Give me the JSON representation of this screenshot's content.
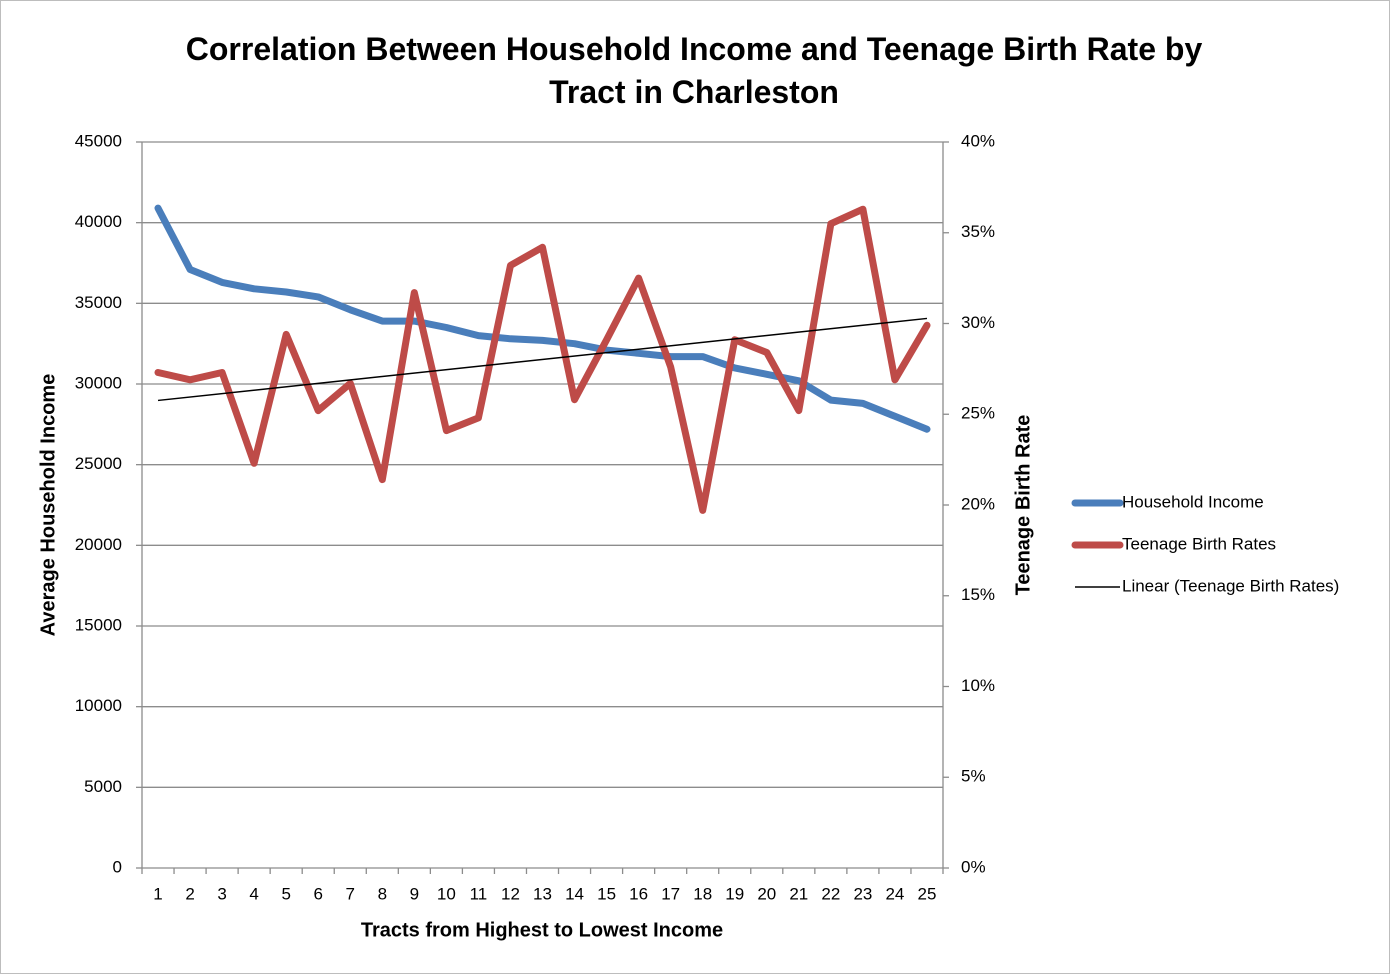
{
  "chart_data": {
    "type": "line",
    "title": "Correlation Between Household Income and Teenage Birth Rate by Tract in Charleston",
    "x_label": "Tracts from Highest to Lowest Income",
    "y_label": "Average Household Income",
    "y2_label": "Teenage Birth Rate",
    "categories": [
      "1",
      "2",
      "3",
      "4",
      "5",
      "6",
      "7",
      "8",
      "9",
      "10",
      "11",
      "12",
      "13",
      "14",
      "15",
      "16",
      "17",
      "18",
      "19",
      "20",
      "21",
      "22",
      "23",
      "24",
      "25"
    ],
    "series": [
      {
        "name": "Household Income",
        "color": "#4a7ebb",
        "values": [
          40900,
          37100,
          36300,
          35900,
          35700,
          35400,
          34600,
          33900,
          33900,
          33500,
          33000,
          32800,
          32700,
          32500,
          32100,
          31900,
          31700,
          31700,
          31000,
          30600,
          30200,
          29000,
          28800,
          28000,
          27200
        ]
      },
      {
        "name": "Teenage Birth Rates",
        "color": "#be4b48",
        "axis": "y2",
        "values": [
          27.3,
          26.9,
          27.3,
          22.3,
          29.4,
          25.2,
          26.7,
          21.4,
          31.7,
          24.1,
          24.8,
          33.2,
          34.2,
          25.8,
          29.1,
          32.5,
          27.6,
          19.7,
          29.1,
          28.4,
          25.2,
          35.5,
          36.3,
          26.9,
          29.9
        ]
      }
    ],
    "trendline": {
      "name": "Linear (Teenage Birth Rates)",
      "color": "#000000"
    },
    "ylim": [
      0,
      45000
    ],
    "yticks": [
      0,
      5000,
      10000,
      15000,
      20000,
      25000,
      30000,
      35000,
      40000,
      45000
    ],
    "y2lim": [
      0,
      40
    ],
    "y2ticks": [
      {
        "value": 0,
        "label": "0%"
      },
      {
        "value": 5,
        "label": "5%"
      },
      {
        "value": 10,
        "label": "10%"
      },
      {
        "value": 15,
        "label": "15%"
      },
      {
        "value": 20,
        "label": "20%"
      },
      {
        "value": 25,
        "label": "25%"
      },
      {
        "value": 30,
        "label": "30%"
      },
      {
        "value": 35,
        "label": "35%"
      },
      {
        "value": 40,
        "label": "40%"
      }
    ],
    "grid": true,
    "legend": "right"
  }
}
